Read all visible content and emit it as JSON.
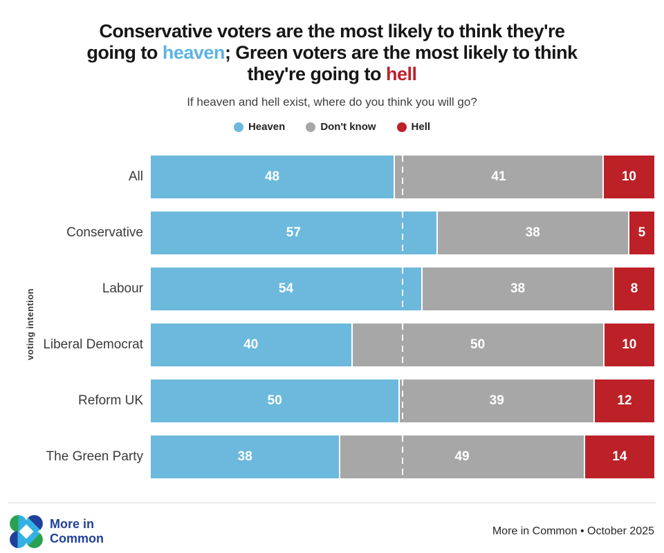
{
  "headline": {
    "lines": [
      [
        {
          "text": "Conservative voters are the most likely to think they're",
          "color": "dark"
        }
      ],
      [
        {
          "text": "going to ",
          "color": "dark"
        },
        {
          "text": "heaven",
          "color": "heaven"
        },
        {
          "text": "; Green voters are the most likely to think",
          "color": "dark"
        }
      ],
      [
        {
          "text": "they're going to ",
          "color": "dark"
        },
        {
          "text": "hell",
          "color": "hell"
        }
      ]
    ],
    "colors": {
      "dark": "#161616",
      "heaven": "#5db4e3",
      "hell": "#c0202b"
    }
  },
  "subtitle": "If heaven and hell exist, where do you think you will go?",
  "legend": [
    {
      "label": "Heaven",
      "color": "#6cb9dd"
    },
    {
      "label": "Don't know",
      "color": "#a7a7a7"
    },
    {
      "label": "Hell",
      "color": "#bb2127"
    }
  ],
  "chart_data": {
    "type": "bar",
    "orientation": "horizontal",
    "stacked": true,
    "normalized": true,
    "categories": [
      "All",
      "Conservative",
      "Labour",
      "Liberal Democrat",
      "Reform UK",
      "The Green Party"
    ],
    "series": [
      {
        "name": "Heaven",
        "color": "#6cb9dd",
        "values": [
          48,
          57,
          54,
          40,
          50,
          38
        ]
      },
      {
        "name": "Don't know",
        "color": "#a7a7a7",
        "values": [
          41,
          38,
          38,
          50,
          39,
          49
        ]
      },
      {
        "name": "Hell",
        "color": "#bb2127",
        "values": [
          10,
          5,
          8,
          10,
          12,
          14
        ]
      }
    ],
    "hatched_category": "All",
    "reference_line": {
      "position_pct": 50,
      "style": "dashed",
      "color": "#ffffff"
    },
    "ylabel": "voting intention",
    "value_label_color": "#ffffff",
    "grid": false,
    "legend_position": "top"
  },
  "footer": {
    "logo_line1": "More in",
    "logo_line2": "Common",
    "credit": "More in Common • October 2025",
    "brand_colors": {
      "navy": "#21409a",
      "green": "#2aa150",
      "cyan": "#33b1e2"
    }
  }
}
